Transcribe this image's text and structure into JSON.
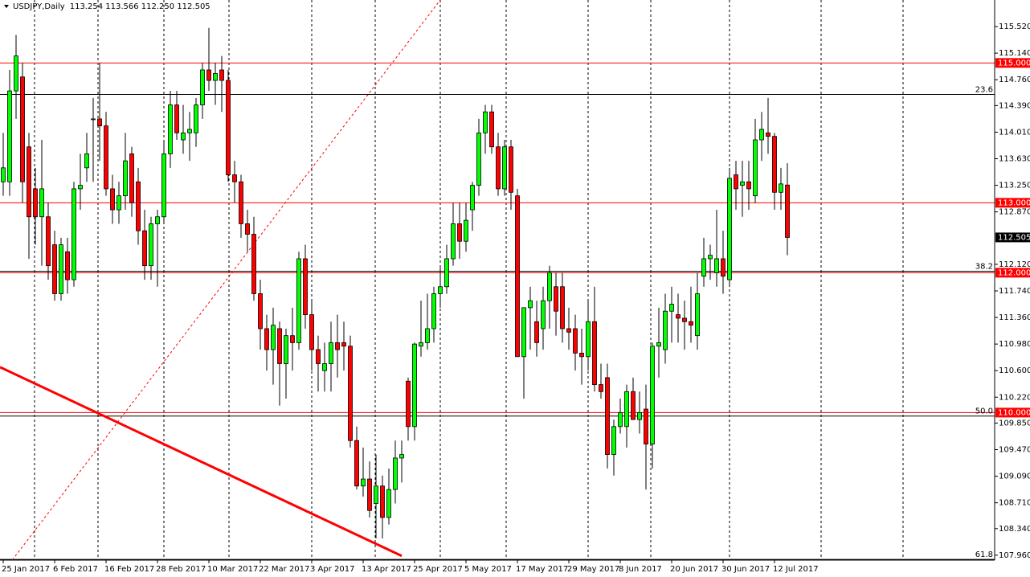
{
  "chart_data": {
    "type": "candlestick",
    "title": "USDJPY,Daily",
    "subtitle": "113.254 113.566 112.250 112.505",
    "up_color": "#00ff00",
    "down_color": "#ff0000",
    "ylim": [
      107.89,
      115.9
    ],
    "yticks": [
      {
        "value": 115.52,
        "label": "115.520"
      },
      {
        "value": 115.14,
        "label": "115.140"
      },
      {
        "value": 114.76,
        "label": "114.760"
      },
      {
        "value": 114.39,
        "label": "114.390"
      },
      {
        "value": 114.01,
        "label": "114.010"
      },
      {
        "value": 113.63,
        "label": "113.630"
      },
      {
        "value": 113.25,
        "label": "113.250"
      },
      {
        "value": 112.87,
        "label": "112.870"
      },
      {
        "value": 112.12,
        "label": "112.120"
      },
      {
        "value": 111.74,
        "label": "111.740"
      },
      {
        "value": 111.36,
        "label": "111.360"
      },
      {
        "value": 110.98,
        "label": "110.980"
      },
      {
        "value": 110.6,
        "label": "110.600"
      },
      {
        "value": 110.22,
        "label": "110.220"
      },
      {
        "value": 109.85,
        "label": "109.850"
      },
      {
        "value": 109.47,
        "label": "109.470"
      },
      {
        "value": 109.09,
        "label": "109.090"
      },
      {
        "value": 108.71,
        "label": "108.710"
      },
      {
        "value": 108.34,
        "label": "108.340"
      },
      {
        "value": 107.96,
        "label": "107.960"
      }
    ],
    "levels": [
      {
        "value": 115,
        "label": "115.000"
      },
      {
        "value": 113,
        "label": "113.000"
      },
      {
        "value": 112,
        "label": "112.000"
      },
      {
        "value": 110,
        "label": "110.000"
      }
    ],
    "level_color": "#ff0000",
    "fib": [
      {
        "name": "23.6",
        "value": 114.55
      },
      {
        "name": "38.2",
        "value": 112.02
      },
      {
        "name": "50.0",
        "value": 109.95
      },
      {
        "name": "61.8",
        "value": 107.9
      }
    ],
    "trendlines": [
      {
        "x": [
          -0.5,
          62
        ],
        "y": [
          110.65,
          107.95
        ],
        "color": "#ff0000",
        "style": "solid"
      },
      {
        "x": [
          1.4,
          68
        ],
        "y": [
          107.89,
          115.9
        ],
        "color": "#ff0000",
        "style": "dotted"
      }
    ],
    "categories": [
      "25 Jan 2017",
      null,
      null,
      null,
      null,
      null,
      null,
      null,
      "6 Feb 2017",
      null,
      null,
      null,
      null,
      null,
      null,
      null,
      "16 Feb 2017",
      null,
      null,
      null,
      null,
      null,
      null,
      null,
      "28 Feb 2017",
      null,
      null,
      null,
      null,
      null,
      null,
      null,
      "10 Mar 2017",
      null,
      null,
      null,
      null,
      null,
      null,
      null,
      "22 Mar 2017",
      null,
      null,
      null,
      null,
      null,
      null,
      null,
      "3 Apr 2017",
      null,
      null,
      null,
      null,
      null,
      null,
      null,
      "13 Apr 2017",
      null,
      null,
      null,
      null,
      null,
      null,
      null,
      "25 Apr 2017",
      null,
      null,
      null,
      null,
      null,
      null,
      null,
      "5 May 2017",
      null,
      null,
      null,
      null,
      null,
      null,
      null,
      "17 May 2017",
      null,
      null,
      null,
      null,
      null,
      null,
      null,
      "29 May 2017",
      null,
      null,
      null,
      null,
      null,
      null,
      null,
      "8 Jun 2017",
      null,
      null,
      null,
      null,
      null,
      null,
      null,
      "20 Jun 2017",
      null,
      null,
      null,
      null,
      null,
      null,
      null,
      "30 Jun 2017",
      null,
      null,
      null,
      null,
      null,
      null,
      null,
      "12 Jul 2017",
      null,
      null
    ],
    "open": [
      113.3,
      113.3,
      114.6,
      114.8,
      113.8,
      113.2,
      112.8,
      112.8,
      112.4,
      111.7,
      112.3,
      111.9,
      113.2,
      113.5,
      114.2,
      114.2,
      114.1,
      113.2,
      112.9,
      113.1,
      113.7,
      113.3,
      112.6,
      112.1,
      112.7,
      112.8,
      113.7,
      114.4,
      113.9,
      114.0,
      114.0,
      114.4,
      114.9,
      114.75,
      114.9,
      114.75,
      113.4,
      113.3,
      112.7,
      112.55,
      111.7,
      111.2,
      110.9,
      111.2,
      110.7,
      111.1,
      111.0,
      112.2,
      111.4,
      110.9,
      110.6,
      110.7,
      111.0,
      111.0,
      110.95,
      109.6,
      108.95,
      109.05,
      108.7,
      108.95,
      108.5,
      108.9,
      109.35,
      110.45,
      109.8,
      110.95,
      111.0,
      111.2,
      111.7,
      111.8,
      112.2,
      112.7,
      112.45,
      112.9,
      113.25,
      114.0,
      114.3,
      113.8,
      113.2,
      113.8,
      113.1,
      110.8,
      111.5,
      111.3,
      111.2,
      111.6,
      111.8,
      111.8,
      111.2,
      111.2,
      110.85,
      110.8,
      111.3,
      110.4,
      110.5,
      109.4,
      109.8,
      109.8,
      110.3,
      109.9,
      110.05,
      109.55,
      110.95,
      110.9,
      111.45,
      111.4,
      111.35,
      111.3,
      111.1,
      111.95,
      112.2,
      112.0,
      112.2,
      111.9,
      113.4,
      113.25,
      113.3,
      113.1,
      113.9,
      114.0,
      113.95,
      113.15,
      113.254
    ],
    "high": [
      114.0,
      114.9,
      115.4,
      115.0,
      114.0,
      113.5,
      113.9,
      113.0,
      112.6,
      112.5,
      112.5,
      113.3,
      113.7,
      114.0,
      114.5,
      115.0,
      114.3,
      113.4,
      113.3,
      114.0,
      113.8,
      113.5,
      112.9,
      112.8,
      112.9,
      113.9,
      114.6,
      114.6,
      114.4,
      114.3,
      114.5,
      115.0,
      115.5,
      115.0,
      115.1,
      114.9,
      113.6,
      113.4,
      112.9,
      112.8,
      111.9,
      111.4,
      111.5,
      111.3,
      111.2,
      111.5,
      112.3,
      112.4,
      111.6,
      111.1,
      111.0,
      111.3,
      111.4,
      111.3,
      111.1,
      109.8,
      109.5,
      109.3,
      109.4,
      109.1,
      109.2,
      109.6,
      109.6,
      110.5,
      111.0,
      111.6,
      111.7,
      111.8,
      112.1,
      112.4,
      113.0,
      113.0,
      113.0,
      113.3,
      114.2,
      114.4,
      114.4,
      114.0,
      113.9,
      113.9,
      113.2,
      111.5,
      111.8,
      111.6,
      111.8,
      112.1,
      112.0,
      112.0,
      111.5,
      111.4,
      111.2,
      111.6,
      111.8,
      110.7,
      110.7,
      109.9,
      110.2,
      110.4,
      110.5,
      110.3,
      110.4,
      111.0,
      111.5,
      111.7,
      111.8,
      111.7,
      111.6,
      111.8,
      112.0,
      112.5,
      112.4,
      112.9,
      112.6,
      113.5,
      113.6,
      113.6,
      113.6,
      114.2,
      114.3,
      114.5,
      114.0,
      113.5,
      113.566
    ],
    "low": [
      113.1,
      113.1,
      114.2,
      113.0,
      112.2,
      112.4,
      112.1,
      111.9,
      111.6,
      111.6,
      111.7,
      111.8,
      112.9,
      113.3,
      113.3,
      113.6,
      113.1,
      112.7,
      112.7,
      112.9,
      112.8,
      112.4,
      111.9,
      111.9,
      111.8,
      112.7,
      113.5,
      113.9,
      113.7,
      113.6,
      113.8,
      114.2,
      114.6,
      114.4,
      114.3,
      113.3,
      113.0,
      112.5,
      112.3,
      111.6,
      110.9,
      110.6,
      110.4,
      110.1,
      110.2,
      110.6,
      110.9,
      111.2,
      110.6,
      110.3,
      110.3,
      110.3,
      110.5,
      110.6,
      109.5,
      108.9,
      108.8,
      108.5,
      108.2,
      108.2,
      108.4,
      108.7,
      109.0,
      109.6,
      109.6,
      110.8,
      110.9,
      111.0,
      111.5,
      111.7,
      112.1,
      112.2,
      112.3,
      112.6,
      113.1,
      113.7,
      113.7,
      113.1,
      113.1,
      112.9,
      110.8,
      110.2,
      110.9,
      110.8,
      110.9,
      111.2,
      111.1,
      111.0,
      110.9,
      110.6,
      110.4,
      110.6,
      110.3,
      110.2,
      109.2,
      109.1,
      109.7,
      109.5,
      109.9,
      109.7,
      108.9,
      109.2,
      110.5,
      110.7,
      111.0,
      111.0,
      110.9,
      111.0,
      110.9,
      111.8,
      111.9,
      111.8,
      111.7,
      111.8,
      112.9,
      112.8,
      112.9,
      113.0,
      113.6,
      113.7,
      112.9,
      112.9,
      112.25
    ],
    "close": [
      113.5,
      114.6,
      115.1,
      113.3,
      112.8,
      112.8,
      113.2,
      112.1,
      111.7,
      112.4,
      111.9,
      113.2,
      113.25,
      113.7,
      114.2,
      114.1,
      113.2,
      112.9,
      113.1,
      113.6,
      113.0,
      112.6,
      112.1,
      112.7,
      112.8,
      113.7,
      114.4,
      114.0,
      114.0,
      114.05,
      114.4,
      114.9,
      114.75,
      114.85,
      114.75,
      113.4,
      113.3,
      112.7,
      112.55,
      111.7,
      111.2,
      110.9,
      111.25,
      110.7,
      111.1,
      111.0,
      112.2,
      111.4,
      110.9,
      110.7,
      110.7,
      111.0,
      110.9,
      110.95,
      109.6,
      108.95,
      109.05,
      108.6,
      108.95,
      108.5,
      108.9,
      109.35,
      109.4,
      109.8,
      110.98,
      111.0,
      111.2,
      111.7,
      111.8,
      112.2,
      112.7,
      112.45,
      112.75,
      113.25,
      114.0,
      114.3,
      113.8,
      113.2,
      113.8,
      113.15,
      110.8,
      111.5,
      111.6,
      111.0,
      111.6,
      112.0,
      111.45,
      111.2,
      111.15,
      110.85,
      110.8,
      111.3,
      110.4,
      110.3,
      109.4,
      109.8,
      110.0,
      110.3,
      109.9,
      110.0,
      109.55,
      110.95,
      111.0,
      111.45,
      111.55,
      111.35,
      111.3,
      111.25,
      111.7,
      112.2,
      112.25,
      112.2,
      111.95,
      113.35,
      113.2,
      113.3,
      113.2,
      113.9,
      114.05,
      113.95,
      113.15,
      113.27,
      112.505
    ]
  }
}
